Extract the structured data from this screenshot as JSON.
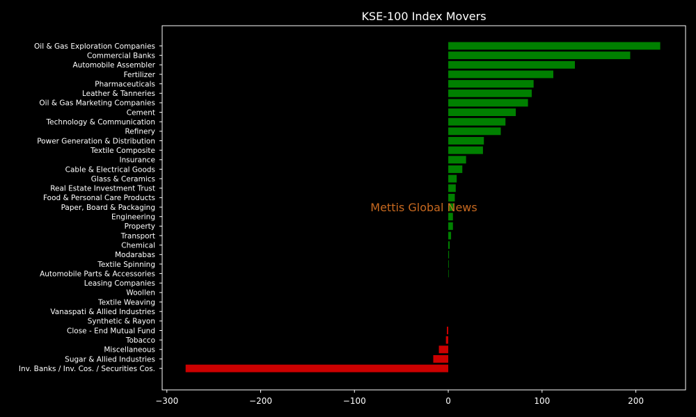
{
  "chart_data": {
    "type": "bar",
    "orientation": "horizontal",
    "title": "KSE-100 Index Movers",
    "watermark": "Mettis Global News",
    "xlim": [
      -305,
      253
    ],
    "xticks": [
      -300,
      -200,
      -100,
      0,
      100,
      200
    ],
    "xtick_labels": [
      "−300",
      "−200",
      "−100",
      "0",
      "100",
      "200"
    ],
    "xlabel": "",
    "ylabel": "",
    "grid": false,
    "colors": {
      "background": "#000000",
      "positive": "#008000",
      "negative": "#cc0000",
      "axis": "#ffffff",
      "text": "#ffffff",
      "watermark": "#c8691f"
    },
    "categories": [
      "Oil & Gas Exploration Companies",
      "Commercial Banks",
      "Automobile Assembler",
      "Fertilizer",
      "Pharmaceuticals",
      "Leather & Tanneries",
      "Oil & Gas Marketing Companies",
      "Cement",
      "Technology & Communication",
      "Refinery",
      "Power Generation & Distribution",
      "Textile Composite",
      "Insurance",
      "Cable & Electrical Goods",
      "Glass & Ceramics",
      "Real Estate Investment Trust",
      "Food & Personal Care Products",
      "Paper, Board & Packaging",
      "Engineering",
      "Property",
      "Transport",
      "Chemical",
      "Modarabas",
      "Textile Spinning",
      "Automobile Parts & Accessories",
      "Leasing Companies",
      "Woollen",
      "Textile Weaving",
      "Vanaspati & Allied Industries",
      "Synthetic & Rayon",
      "Close - End Mutual Fund",
      "Tobacco",
      "Miscellaneous",
      "Sugar & Allied Industries",
      "Inv. Banks / Inv. Cos. / Securities Cos."
    ],
    "values": [
      226,
      194,
      135,
      112,
      91,
      89,
      85,
      72,
      61,
      56,
      38,
      37,
      19,
      15,
      9,
      8,
      7,
      6,
      5,
      5,
      3,
      1.5,
      0.8,
      0.6,
      0.5,
      0,
      0,
      0,
      0,
      0,
      -1.5,
      -2.5,
      -10,
      -16,
      -280
    ]
  }
}
